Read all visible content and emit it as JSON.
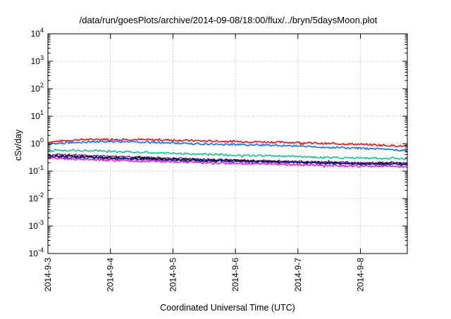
{
  "chart_data": {
    "type": "line",
    "title": "/data/run/goesPlots/archive/2014-09-08/18:00/flux/../bryn/5daysMoon.plot",
    "xlabel": "Coordinated Universal Time (UTC)",
    "ylabel": "cSv/day",
    "y_scale": "log",
    "ylim": [
      0.0001,
      10000
    ],
    "y_ticks": [
      {
        "value": 0.0001,
        "base": "10",
        "exp": "-4"
      },
      {
        "value": 0.001,
        "base": "10",
        "exp": "-3"
      },
      {
        "value": 0.01,
        "base": "10",
        "exp": "-2"
      },
      {
        "value": 0.1,
        "base": "10",
        "exp": "-1"
      },
      {
        "value": 1,
        "base": "10",
        "exp": "0"
      },
      {
        "value": 10,
        "base": "10",
        "exp": "1"
      },
      {
        "value": 100,
        "base": "10",
        "exp": "2"
      },
      {
        "value": 1000,
        "base": "10",
        "exp": "3"
      },
      {
        "value": 10000,
        "base": "10",
        "exp": "4"
      }
    ],
    "xlim": [
      "2014-09-03",
      "2014-09-08 18:00"
    ],
    "x_ticks": [
      {
        "value": "2014-09-03",
        "label": "2014-9-3"
      },
      {
        "value": "2014-09-04",
        "label": "2014-9-4"
      },
      {
        "value": "2014-09-05",
        "label": "2014-9-5"
      },
      {
        "value": "2014-09-06",
        "label": "2014-9-6"
      },
      {
        "value": "2014-09-07",
        "label": "2014-9-7"
      },
      {
        "value": "2014-09-08",
        "label": "2014-9-8"
      }
    ],
    "grid": true,
    "x": [
      "2014-09-03 00:00",
      "2014-09-03 12:00",
      "2014-09-04 00:00",
      "2014-09-04 12:00",
      "2014-09-05 00:00",
      "2014-09-05 12:00",
      "2014-09-06 00:00",
      "2014-09-06 12:00",
      "2014-09-07 00:00",
      "2014-09-07 12:00",
      "2014-09-08 00:00",
      "2014-09-08 12:00",
      "2014-09-08 18:00"
    ],
    "series": [
      {
        "color": "#e8141b",
        "values": [
          1.15,
          1.4,
          1.45,
          1.4,
          1.35,
          1.25,
          1.2,
          1.15,
          1.1,
          1.0,
          0.95,
          0.85,
          0.8
        ]
      },
      {
        "color": "#1a6ef5",
        "values": [
          0.95,
          1.15,
          1.2,
          1.15,
          1.05,
          0.98,
          0.92,
          0.88,
          0.82,
          0.72,
          0.68,
          0.6,
          0.55
        ]
      },
      {
        "color": "#20c090",
        "values": [
          0.55,
          0.57,
          0.52,
          0.48,
          0.44,
          0.41,
          0.38,
          0.36,
          0.34,
          0.31,
          0.3,
          0.29,
          0.28
        ]
      },
      {
        "color": "#7a2a8a",
        "values": [
          0.4,
          0.38,
          0.34,
          0.32,
          0.29,
          0.27,
          0.25,
          0.24,
          0.22,
          0.21,
          0.2,
          0.2,
          0.19
        ]
      },
      {
        "color": "#000000",
        "values": [
          0.36,
          0.34,
          0.31,
          0.29,
          0.27,
          0.25,
          0.24,
          0.23,
          0.21,
          0.2,
          0.19,
          0.19,
          0.18
        ]
      },
      {
        "color": "#1a2aa8",
        "values": [
          0.33,
          0.31,
          0.28,
          0.27,
          0.25,
          0.23,
          0.22,
          0.21,
          0.2,
          0.19,
          0.18,
          0.18,
          0.17
        ]
      },
      {
        "color": "#f020d8",
        "values": [
          0.29,
          0.27,
          0.25,
          0.23,
          0.22,
          0.2,
          0.19,
          0.18,
          0.17,
          0.16,
          0.15,
          0.15,
          0.14
        ]
      }
    ]
  }
}
